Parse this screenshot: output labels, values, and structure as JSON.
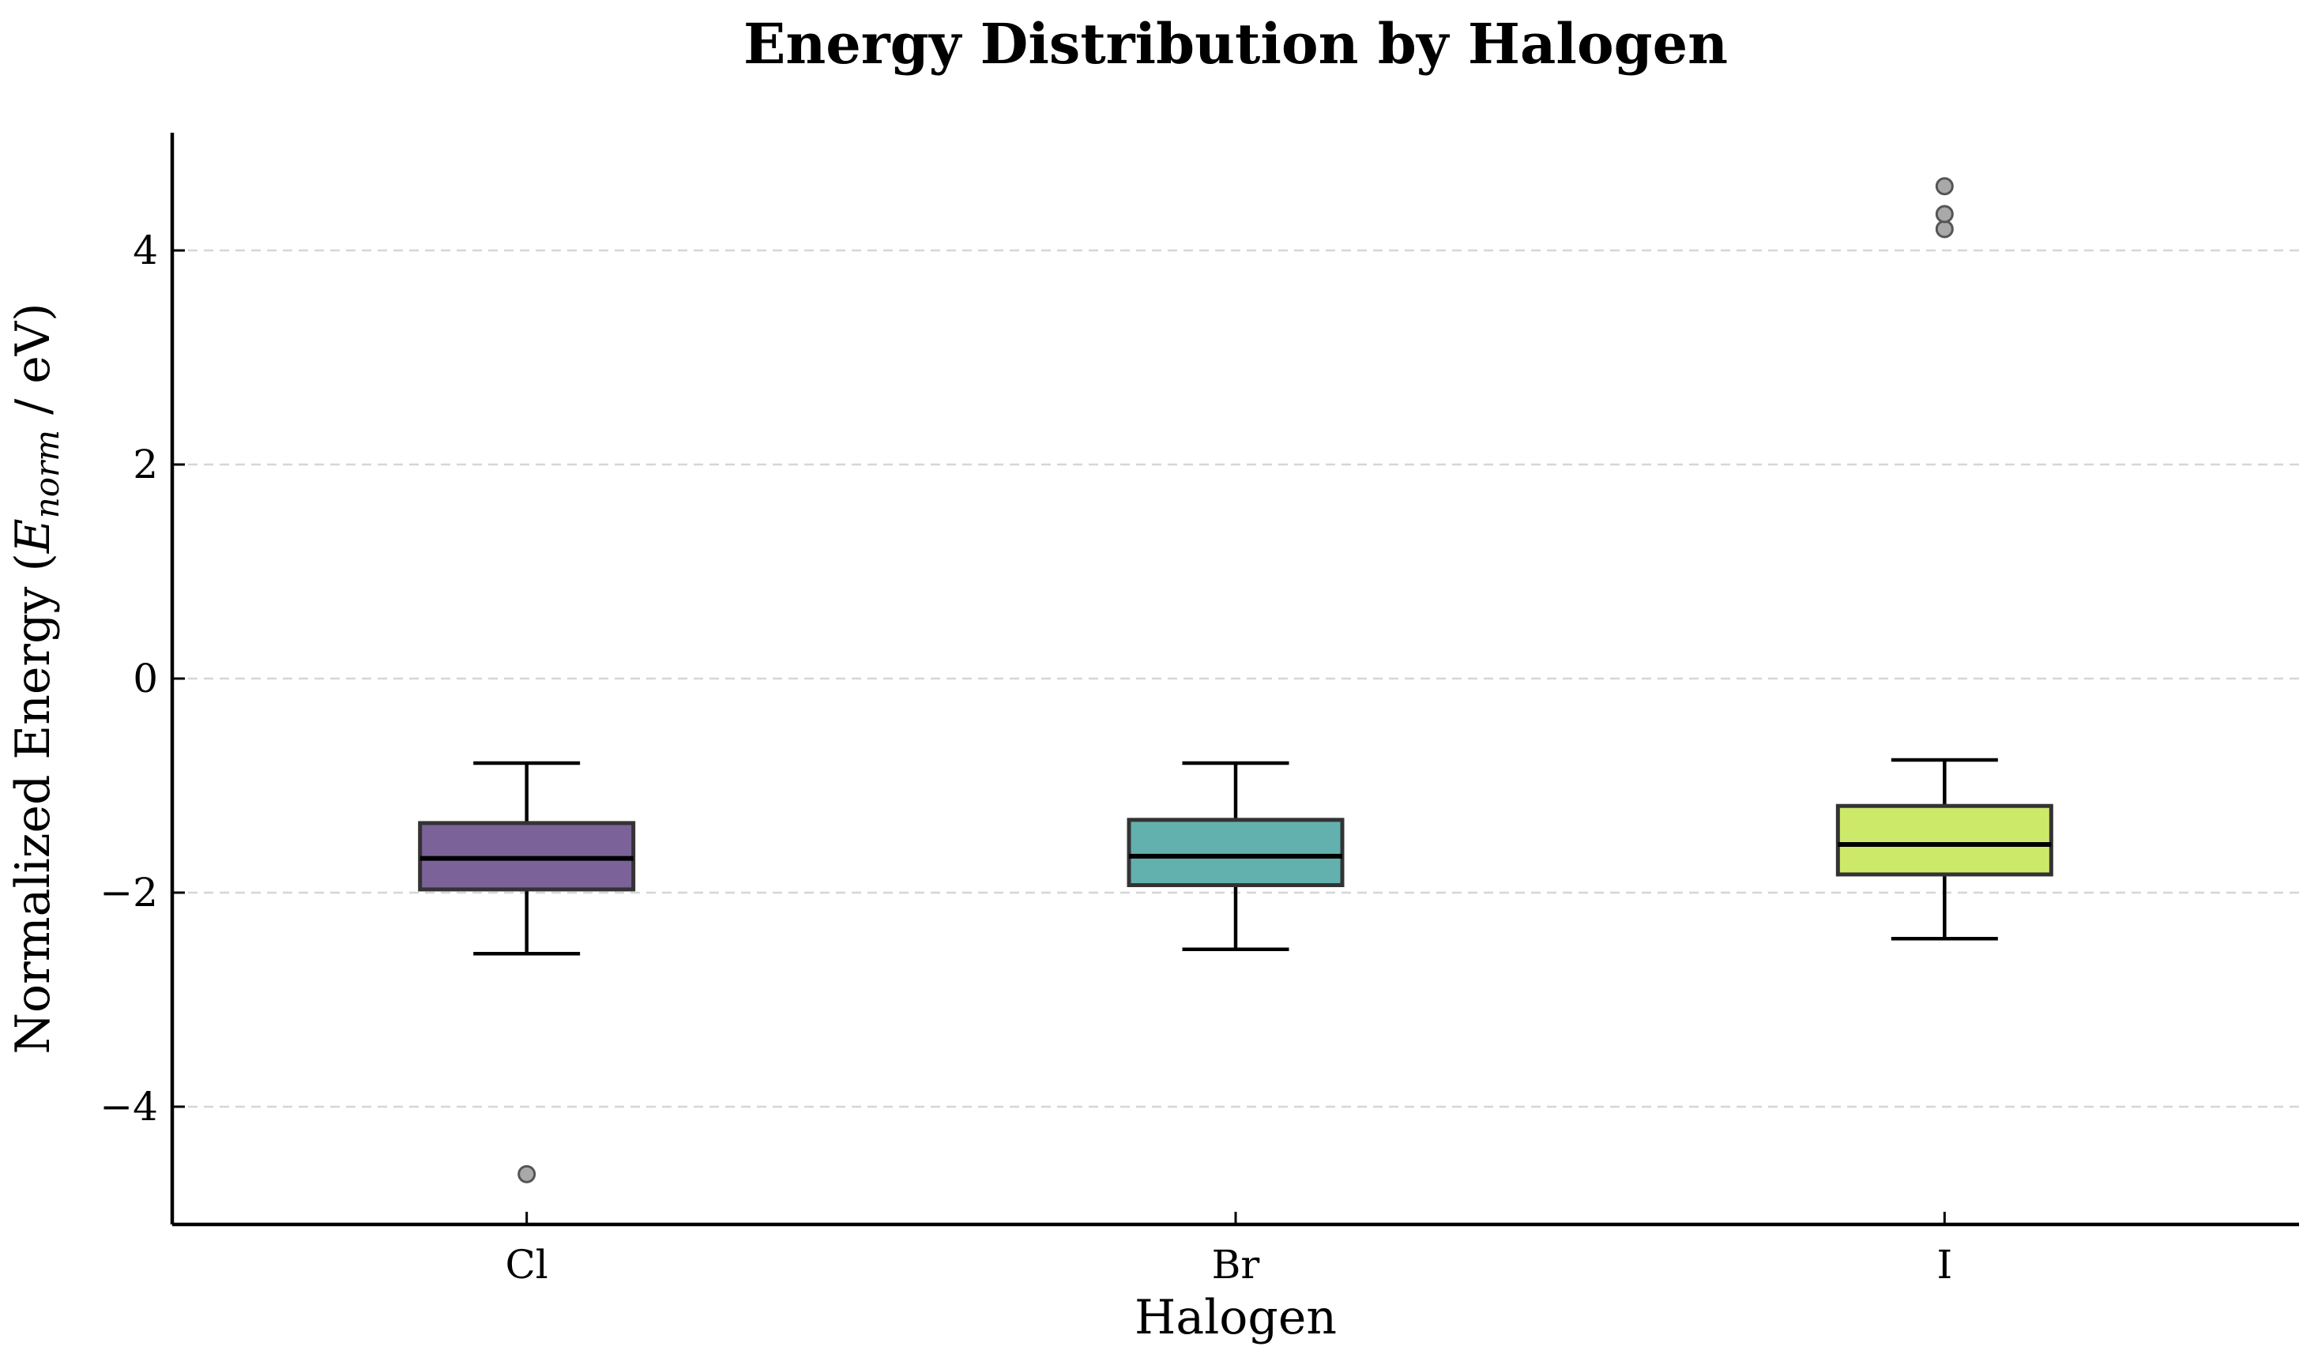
{
  "chart_data": {
    "type": "box",
    "title": "Energy Distribution by Halogen",
    "xlabel": "Halogen",
    "ylabel": "Normalized Energy (Enorm / eV)",
    "ylabel_parts": {
      "prefix": "Normalized Energy (",
      "symbol": "E",
      "subscript": "norm",
      "suffix": " / eV)"
    },
    "ylim": [
      -5.1,
      5.1
    ],
    "yticks": [
      -4,
      -2,
      0,
      2,
      4
    ],
    "ytick_labels": [
      "−4",
      "−2",
      "0",
      "2",
      "4"
    ],
    "grid": {
      "y": true,
      "style": "dashed"
    },
    "categories": [
      "Cl",
      "Br",
      "I"
    ],
    "series": [
      {
        "category": "Cl",
        "whisker_low": -2.57,
        "q1": -1.97,
        "median": -1.68,
        "q3": -1.35,
        "whisker_high": -0.79,
        "outliers": [
          -4.63
        ],
        "color": "#7b6399"
      },
      {
        "category": "Br",
        "whisker_low": -2.53,
        "q1": -1.93,
        "median": -1.66,
        "q3": -1.32,
        "whisker_high": -0.79,
        "outliers": [],
        "color": "#63b1ae"
      },
      {
        "category": "I",
        "whisker_low": -2.43,
        "q1": -1.83,
        "median": -1.55,
        "q3": -1.19,
        "whisker_high": -0.76,
        "outliers": [
          4.2,
          4.34,
          4.6
        ],
        "color": "#cde969"
      }
    ]
  }
}
